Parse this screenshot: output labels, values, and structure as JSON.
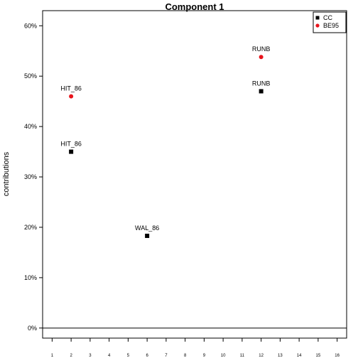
{
  "chart_data": {
    "type": "scatter",
    "title": "Component 1",
    "xlabel": "",
    "ylabel": "contributions",
    "xlim": [
      0.5,
      16.5
    ],
    "ylim": [
      -0.02,
      0.63
    ],
    "x_ticks": [
      1,
      2,
      3,
      4,
      5,
      6,
      7,
      8,
      9,
      10,
      11,
      12,
      13,
      14,
      15,
      16
    ],
    "y_ticks": [
      {
        "value": 0.0,
        "label": "0%"
      },
      {
        "value": 0.1,
        "label": "10%"
      },
      {
        "value": 0.2,
        "label": "20%"
      },
      {
        "value": 0.3,
        "label": "30%"
      },
      {
        "value": 0.4,
        "label": "40%"
      },
      {
        "value": 0.5,
        "label": "50%"
      },
      {
        "value": 0.6,
        "label": "60%"
      }
    ],
    "reference_line_y": 0,
    "grid": false,
    "legend_position": "top-right",
    "series": [
      {
        "name": "CC",
        "color": "#000000",
        "marker": "square",
        "points": [
          {
            "x": 2,
            "y": 0.35,
            "label": "HIT_86"
          },
          {
            "x": 6,
            "y": 0.183,
            "label": "WAL_86"
          },
          {
            "x": 12,
            "y": 0.47,
            "label": "RUNB"
          }
        ]
      },
      {
        "name": "BE95",
        "color": "#e8141c",
        "marker": "circle",
        "points": [
          {
            "x": 2,
            "y": 0.46,
            "label": "HIT_86"
          },
          {
            "x": 12,
            "y": 0.538,
            "label": "RUNB"
          }
        ]
      }
    ]
  }
}
